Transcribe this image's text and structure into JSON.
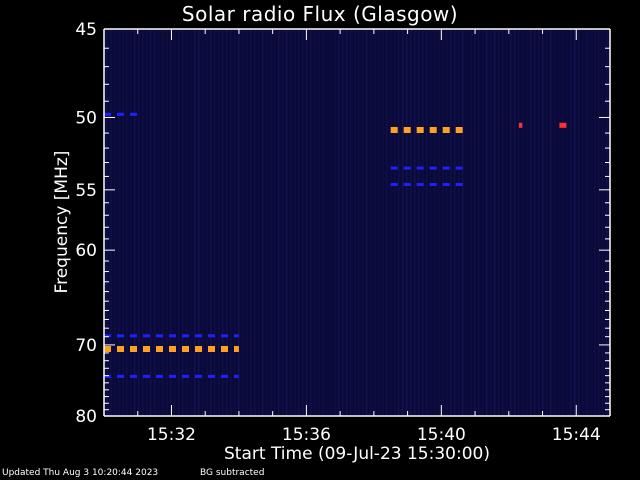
{
  "chart_data": {
    "type": "heatmap",
    "title": "Solar radio Flux (Glasgow)",
    "xlabel": "Start Time (09-Jul-23 15:30:00)",
    "ylabel": "Frequency [MHz]",
    "x_range_minutes": [
      "15:30",
      "15:45"
    ],
    "x_ticks": [
      "15:32",
      "15:36",
      "15:40",
      "15:44"
    ],
    "y_range": [
      45,
      80
    ],
    "y_scale": "reciprocal",
    "y_ticks": [
      45,
      50,
      55,
      60,
      70,
      80
    ],
    "background_color": "#0a0a3a",
    "colors": {
      "weak": "#2020ff",
      "medium": "#ff3030",
      "strong": "#ffa020",
      "axis": "#ffffff"
    },
    "features": [
      {
        "start": "15:30",
        "end": "15:34",
        "freq_mhz": 70.5,
        "intensity": "strong"
      },
      {
        "start": "15:30",
        "end": "15:34",
        "freq_mhz": 68.9,
        "intensity": "weak"
      },
      {
        "start": "15:30",
        "end": "15:34",
        "freq_mhz": 74.1,
        "intensity": "weak"
      },
      {
        "start": "15:30",
        "end": "15:31",
        "freq_mhz": 49.8,
        "intensity": "weak"
      },
      {
        "start": "15:38.5",
        "end": "15:40.7",
        "freq_mhz": 50.8,
        "intensity": "strong"
      },
      {
        "start": "15:38.5",
        "end": "15:40.7",
        "freq_mhz": 53.4,
        "intensity": "weak"
      },
      {
        "start": "15:38.5",
        "end": "15:40.7",
        "freq_mhz": 54.6,
        "intensity": "weak"
      },
      {
        "start": "15:42.3",
        "end": "15:42.4",
        "freq_mhz": 50.5,
        "intensity": "medium"
      },
      {
        "start": "15:43.5",
        "end": "15:43.8",
        "freq_mhz": 50.5,
        "intensity": "medium"
      }
    ]
  },
  "footer": {
    "updated": "Updated Thu Aug  3 10:20:44 2023",
    "bg_note": "BG subtracted"
  }
}
